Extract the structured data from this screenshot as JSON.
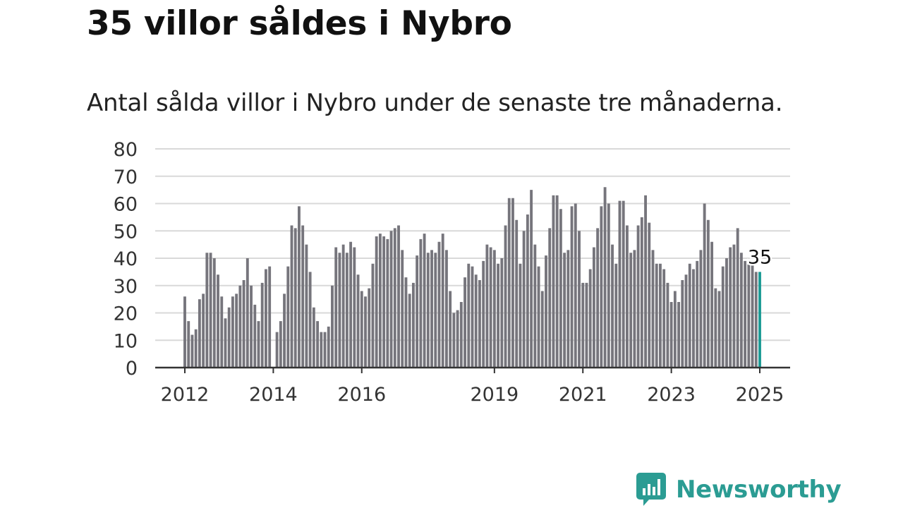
{
  "header": {
    "title": "35 villor såldes i Nybro",
    "subtitle": "Antal sålda villor i Nybro under de senaste tre månaderna."
  },
  "brand": {
    "name": "Newsworthy",
    "logo_icon": "newsworthy-chart-bubble-icon",
    "color": "#2b9c93"
  },
  "colors": {
    "bar": "#76757c",
    "highlight": "#1a9a94",
    "grid": "#d9d9d9",
    "axis": "#333333"
  },
  "chart_data": {
    "type": "bar",
    "title": "35 villor såldes i Nybro",
    "subtitle": "Antal sålda villor i Nybro under de senaste tre månaderna.",
    "xlabel": "",
    "ylabel": "",
    "ylim": [
      0,
      80
    ],
    "yticks": [
      0,
      10,
      20,
      30,
      40,
      50,
      60,
      70,
      80
    ],
    "xticks": [
      {
        "label": "2012",
        "index": 0
      },
      {
        "label": "2014",
        "index": 24
      },
      {
        "label": "2016",
        "index": 48
      },
      {
        "label": "2019",
        "index": 84
      },
      {
        "label": "2021",
        "index": 108
      },
      {
        "label": "2023",
        "index": 132
      },
      {
        "label": "2025",
        "index": 156
      }
    ],
    "grid": true,
    "highlight": {
      "index": 156,
      "label": "35"
    },
    "values": [
      26,
      17,
      12,
      14,
      25,
      27,
      42,
      42,
      40,
      34,
      26,
      18,
      22,
      26,
      27,
      30,
      32,
      40,
      30,
      23,
      17,
      31,
      36,
      37,
      0,
      13,
      17,
      27,
      37,
      52,
      51,
      59,
      52,
      45,
      35,
      22,
      17,
      13,
      13,
      15,
      30,
      44,
      42,
      45,
      42,
      46,
      44,
      34,
      28,
      26,
      29,
      38,
      48,
      49,
      48,
      47,
      50,
      51,
      52,
      43,
      33,
      27,
      31,
      41,
      47,
      49,
      42,
      43,
      42,
      46,
      49,
      43,
      28,
      20,
      21,
      24,
      33,
      38,
      37,
      34,
      32,
      39,
      45,
      44,
      43,
      38,
      40,
      52,
      62,
      62,
      54,
      38,
      50,
      56,
      65,
      45,
      37,
      28,
      41,
      51,
      63,
      63,
      58,
      42,
      43,
      59,
      60,
      50,
      31,
      31,
      36,
      44,
      51,
      59,
      66,
      60,
      45,
      38,
      61,
      61,
      52,
      42,
      43,
      52,
      55,
      63,
      53,
      43,
      38,
      38,
      36,
      31,
      24,
      28,
      24,
      32,
      34,
      38,
      36,
      39,
      43,
      60,
      54,
      46,
      29,
      28,
      37,
      40,
      44,
      45,
      51,
      42,
      39,
      38,
      38,
      35,
      35
    ]
  }
}
